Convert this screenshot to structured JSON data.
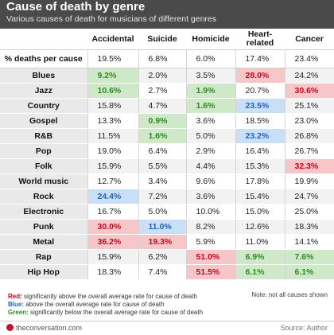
{
  "chart_data": {
    "type": "table",
    "title": "Cause of death by genre",
    "subtitle": "Various causes of death for musicians of different genres",
    "columns": [
      "Accidental",
      "Suicide",
      "Homicide",
      "Heart-related",
      "Cancer"
    ],
    "average_row": {
      "label": "% deaths per cause",
      "values": [
        "19.5%",
        "6.8%",
        "6.0%",
        "17.4%",
        "23.4%"
      ]
    },
    "rows": [
      {
        "label": "Blues",
        "values": [
          "9.2%",
          "2.0%",
          "3.5%",
          "28.0%",
          "24.2%"
        ],
        "flags": [
          "green",
          "",
          "",
          "red",
          ""
        ]
      },
      {
        "label": "Jazz",
        "values": [
          "10.6%",
          "2.7%",
          "1.9%",
          "20.7%",
          "30.6%"
        ],
        "flags": [
          "green",
          "",
          "green",
          "",
          "red"
        ]
      },
      {
        "label": "Country",
        "values": [
          "15.8%",
          "4.7%",
          "1.6%",
          "23.5%",
          "25.1%"
        ],
        "flags": [
          "",
          "",
          "green",
          "blue",
          ""
        ]
      },
      {
        "label": "Gospel",
        "values": [
          "13.3%",
          "0.9%",
          "3.6%",
          "18.5%",
          "23.0%"
        ],
        "flags": [
          "",
          "green",
          "",
          "",
          ""
        ]
      },
      {
        "label": "R&B",
        "values": [
          "11.5%",
          "1.6%",
          "5.0%",
          "23.2%",
          "26.8%"
        ],
        "flags": [
          "",
          "green",
          "",
          "blue",
          ""
        ]
      },
      {
        "label": "Pop",
        "values": [
          "19.0%",
          "6.4%",
          "2.9%",
          "16.4%",
          "26.7%"
        ],
        "flags": [
          "",
          "",
          "",
          "",
          ""
        ]
      },
      {
        "label": "Folk",
        "values": [
          "15.9%",
          "5.5%",
          "4.4%",
          "15.3%",
          "32.3%"
        ],
        "flags": [
          "",
          "",
          "",
          "",
          "red"
        ]
      },
      {
        "label": "World music",
        "values": [
          "12.7%",
          "3.4%",
          "9.6%",
          "17.8%",
          "19.9%"
        ],
        "flags": [
          "",
          "",
          "",
          "",
          ""
        ]
      },
      {
        "label": "Rock",
        "values": [
          "24.4%",
          "7.2%",
          "3.6%",
          "15.4%",
          "24.7%"
        ],
        "flags": [
          "blue",
          "",
          "",
          "",
          ""
        ]
      },
      {
        "label": "Electronic",
        "values": [
          "16.7%",
          "5.0%",
          "10.0%",
          "15.0%",
          "25.0%"
        ],
        "flags": [
          "",
          "",
          "",
          "",
          ""
        ]
      },
      {
        "label": "Punk",
        "values": [
          "30.0%",
          "11.0%",
          "8.2%",
          "12.6%",
          "18.3%"
        ],
        "flags": [
          "red",
          "blue",
          "",
          "",
          ""
        ]
      },
      {
        "label": "Metal",
        "values": [
          "36.2%",
          "19.3%",
          "5.9%",
          "11.0%",
          "14.1%"
        ],
        "flags": [
          "red",
          "red",
          "",
          "",
          ""
        ]
      },
      {
        "label": "Rap",
        "values": [
          "15.9%",
          "6.2%",
          "51.0%",
          "6.9%",
          "7.6%"
        ],
        "flags": [
          "",
          "",
          "red",
          "green",
          "green"
        ]
      },
      {
        "label": "Hip Hop",
        "values": [
          "18.3%",
          "7.4%",
          "51.5%",
          "6.1%",
          "6.1%"
        ],
        "flags": [
          "",
          "",
          "red",
          "green",
          "green"
        ]
      }
    ],
    "colors": {
      "red": "#d0021b",
      "blue": "#1f63c6",
      "green": "#2e8a22"
    }
  },
  "legend": {
    "red_label": "Red:",
    "red_text": " significantly above the overall average rate for cause of death",
    "blue_label": "Blue:",
    "blue_text": " above the overall average rate for cause of death",
    "green_label": "Green:",
    "green_text": " significantly below the overall average rate for cause of death"
  },
  "note": "Note: not all causes shown",
  "footer": {
    "brand": "theconversation.com",
    "source": "Source: Author"
  }
}
